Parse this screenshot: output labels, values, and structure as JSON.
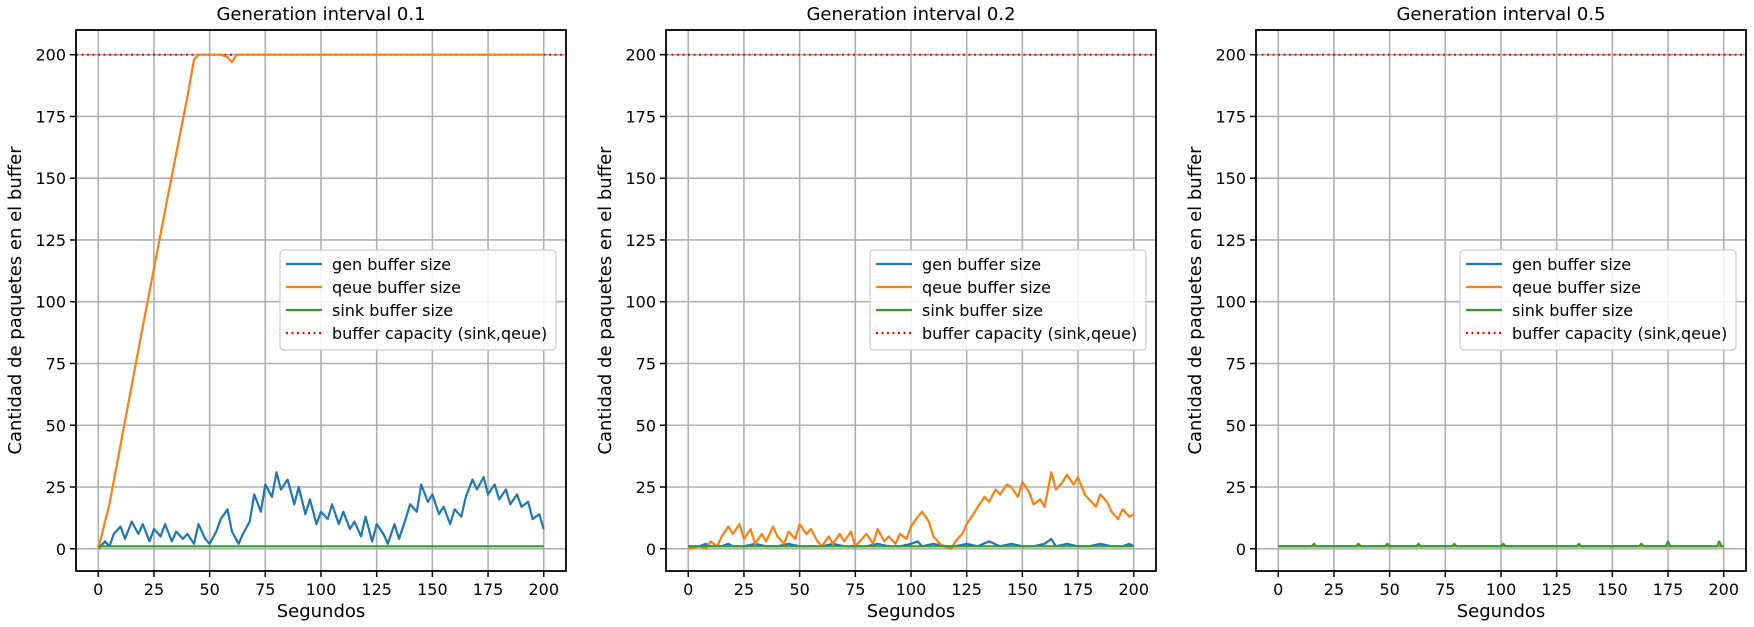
{
  "chart_data": [
    {
      "type": "line",
      "title": "Generation interval 0.1",
      "xlabel": "Segundos",
      "ylabel": "Cantidad de paquetes en el buffer",
      "xlim": [
        -10,
        210
      ],
      "ylim": [
        -9,
        210
      ],
      "xticks": [
        0,
        25,
        50,
        75,
        100,
        125,
        150,
        175,
        200
      ],
      "yticks": [
        0,
        25,
        50,
        75,
        100,
        125,
        150,
        175,
        200
      ],
      "grid": true,
      "legend_position": "center-right",
      "hline": {
        "name": "buffer capacity (sink,qeue)",
        "y": 200,
        "color": "#ff0000",
        "style": "dotted"
      },
      "series": [
        {
          "name": "gen buffer size",
          "color": "#1f77b4",
          "x": [
            0,
            3,
            5,
            7,
            10,
            12,
            15,
            18,
            20,
            23,
            25,
            28,
            30,
            33,
            35,
            38,
            40,
            43,
            45,
            48,
            50,
            53,
            55,
            58,
            60,
            63,
            65,
            68,
            70,
            73,
            75,
            78,
            80,
            82,
            85,
            88,
            90,
            93,
            95,
            98,
            100,
            103,
            105,
            108,
            110,
            113,
            115,
            118,
            120,
            123,
            125,
            128,
            130,
            133,
            135,
            138,
            140,
            143,
            145,
            148,
            150,
            153,
            155,
            158,
            160,
            163,
            165,
            168,
            170,
            173,
            175,
            178,
            180,
            183,
            185,
            188,
            190,
            193,
            195,
            198,
            200
          ],
          "values": [
            0,
            3,
            1,
            6,
            9,
            4,
            11,
            6,
            10,
            3,
            8,
            5,
            10,
            3,
            7,
            4,
            6,
            2,
            10,
            4,
            2,
            7,
            12,
            16,
            7,
            2,
            6,
            11,
            22,
            15,
            26,
            21,
            31,
            24,
            28,
            18,
            25,
            14,
            20,
            10,
            15,
            12,
            18,
            10,
            15,
            8,
            11,
            5,
            13,
            3,
            10,
            6,
            2,
            10,
            4,
            12,
            18,
            15,
            26,
            19,
            22,
            14,
            17,
            10,
            16,
            13,
            21,
            28,
            24,
            29,
            22,
            26,
            20,
            24,
            18,
            22,
            17,
            19,
            12,
            14,
            8
          ]
        },
        {
          "name": "qeue buffer size",
          "color": "#ff7f0e",
          "x": [
            0,
            5,
            10,
            20,
            30,
            40,
            43,
            45,
            50,
            55,
            58,
            60,
            62,
            70,
            80,
            100,
            120,
            140,
            160,
            180,
            200
          ],
          "values": [
            0,
            18,
            42,
            90,
            137,
            183,
            198,
            200,
            200,
            200,
            199,
            197,
            200,
            200,
            200,
            200,
            200,
            200,
            200,
            200,
            200
          ]
        },
        {
          "name": "sink buffer size",
          "color": "#2ca02c",
          "x": [
            0,
            50,
            100,
            150,
            200
          ],
          "values": [
            1,
            1,
            1,
            1,
            1
          ]
        }
      ]
    },
    {
      "type": "line",
      "title": "Generation interval 0.2",
      "xlabel": "Segundos",
      "ylabel": "Cantidad de paquetes en el buffer",
      "xlim": [
        -10,
        210
      ],
      "ylim": [
        -9,
        210
      ],
      "xticks": [
        0,
        25,
        50,
        75,
        100,
        125,
        150,
        175,
        200
      ],
      "yticks": [
        0,
        25,
        50,
        75,
        100,
        125,
        150,
        175,
        200
      ],
      "grid": true,
      "legend_position": "center-right",
      "hline": {
        "name": "buffer capacity (sink,qeue)",
        "y": 200,
        "color": "#ff0000",
        "style": "dotted"
      },
      "series": [
        {
          "name": "gen buffer size",
          "color": "#1f77b4",
          "x": [
            0,
            5,
            8,
            10,
            15,
            18,
            20,
            25,
            30,
            35,
            40,
            45,
            50,
            55,
            60,
            65,
            70,
            75,
            80,
            85,
            90,
            95,
            100,
            103,
            105,
            110,
            115,
            120,
            125,
            130,
            135,
            140,
            145,
            150,
            155,
            160,
            163,
            165,
            170,
            175,
            180,
            185,
            190,
            195,
            198,
            200
          ],
          "values": [
            1,
            1,
            2,
            1,
            1,
            2,
            1,
            1,
            2,
            1,
            1,
            2,
            1,
            1,
            1,
            2,
            1,
            1,
            1,
            2,
            1,
            1,
            2,
            3,
            1,
            2,
            1,
            1,
            2,
            1,
            3,
            1,
            2,
            1,
            1,
            2,
            4,
            1,
            2,
            1,
            1,
            2,
            1,
            1,
            2,
            1
          ]
        },
        {
          "name": "qeue buffer size",
          "color": "#ff7f0e",
          "x": [
            0,
            5,
            8,
            10,
            13,
            15,
            18,
            20,
            23,
            25,
            28,
            30,
            33,
            35,
            38,
            40,
            43,
            45,
            48,
            50,
            53,
            55,
            58,
            60,
            63,
            65,
            68,
            70,
            73,
            75,
            78,
            80,
            83,
            85,
            88,
            90,
            93,
            95,
            98,
            100,
            103,
            105,
            108,
            110,
            113,
            115,
            118,
            120,
            123,
            125,
            128,
            130,
            133,
            135,
            138,
            140,
            143,
            145,
            148,
            150,
            153,
            155,
            158,
            160,
            163,
            165,
            168,
            170,
            173,
            175,
            178,
            180,
            183,
            185,
            188,
            190,
            193,
            195,
            198,
            200
          ],
          "values": [
            0,
            1,
            0,
            3,
            1,
            5,
            9,
            6,
            10,
            4,
            8,
            2,
            6,
            3,
            9,
            5,
            2,
            7,
            4,
            10,
            6,
            8,
            3,
            1,
            5,
            2,
            6,
            3,
            7,
            1,
            4,
            6,
            2,
            8,
            3,
            5,
            2,
            6,
            4,
            9,
            13,
            15,
            11,
            5,
            2,
            1,
            0,
            3,
            6,
            10,
            14,
            17,
            21,
            19,
            24,
            22,
            26,
            25,
            21,
            27,
            23,
            18,
            20,
            17,
            31,
            24,
            27,
            30,
            26,
            29,
            22,
            20,
            17,
            22,
            19,
            15,
            12,
            16,
            13,
            14
          ]
        },
        {
          "name": "sink buffer size",
          "color": "#2ca02c",
          "x": [
            0,
            50,
            100,
            150,
            200
          ],
          "values": [
            1,
            1,
            1,
            1,
            1
          ]
        }
      ]
    },
    {
      "type": "line",
      "title": "Generation interval 0.5",
      "xlabel": "Segundos",
      "ylabel": "Cantidad de paquetes en el buffer",
      "xlim": [
        -10,
        210
      ],
      "ylim": [
        -9,
        210
      ],
      "xticks": [
        0,
        25,
        50,
        75,
        100,
        125,
        150,
        175,
        200
      ],
      "yticks": [
        0,
        25,
        50,
        75,
        100,
        125,
        150,
        175,
        200
      ],
      "grid": true,
      "legend_position": "center-right",
      "hline": {
        "name": "buffer capacity (sink,qeue)",
        "y": 200,
        "color": "#ff0000",
        "style": "dotted"
      },
      "series": [
        {
          "name": "gen buffer size",
          "color": "#1f77b4",
          "x": [
            0,
            50,
            100,
            150,
            200
          ],
          "values": [
            1,
            1,
            1,
            1,
            1
          ]
        },
        {
          "name": "qeue buffer size",
          "color": "#ff7f0e",
          "x": [
            0,
            50,
            100,
            150,
            200
          ],
          "values": [
            1,
            1,
            1,
            1,
            1
          ]
        },
        {
          "name": "sink buffer size",
          "color": "#2ca02c",
          "x": [
            0,
            15,
            16,
            17,
            30,
            35,
            36,
            37,
            48,
            49,
            50,
            62,
            63,
            64,
            75,
            78,
            79,
            80,
            100,
            101,
            102,
            125,
            134,
            135,
            136,
            160,
            162,
            163,
            164,
            174,
            175,
            176,
            190,
            197,
            198,
            199,
            200
          ],
          "values": [
            1,
            1,
            2,
            1,
            1,
            1,
            2,
            1,
            1,
            2,
            1,
            1,
            2,
            1,
            1,
            1,
            2,
            1,
            1,
            2,
            1,
            1,
            1,
            2,
            1,
            1,
            1,
            2,
            1,
            1,
            3,
            1,
            1,
            1,
            3,
            1,
            1
          ]
        }
      ]
    }
  ]
}
